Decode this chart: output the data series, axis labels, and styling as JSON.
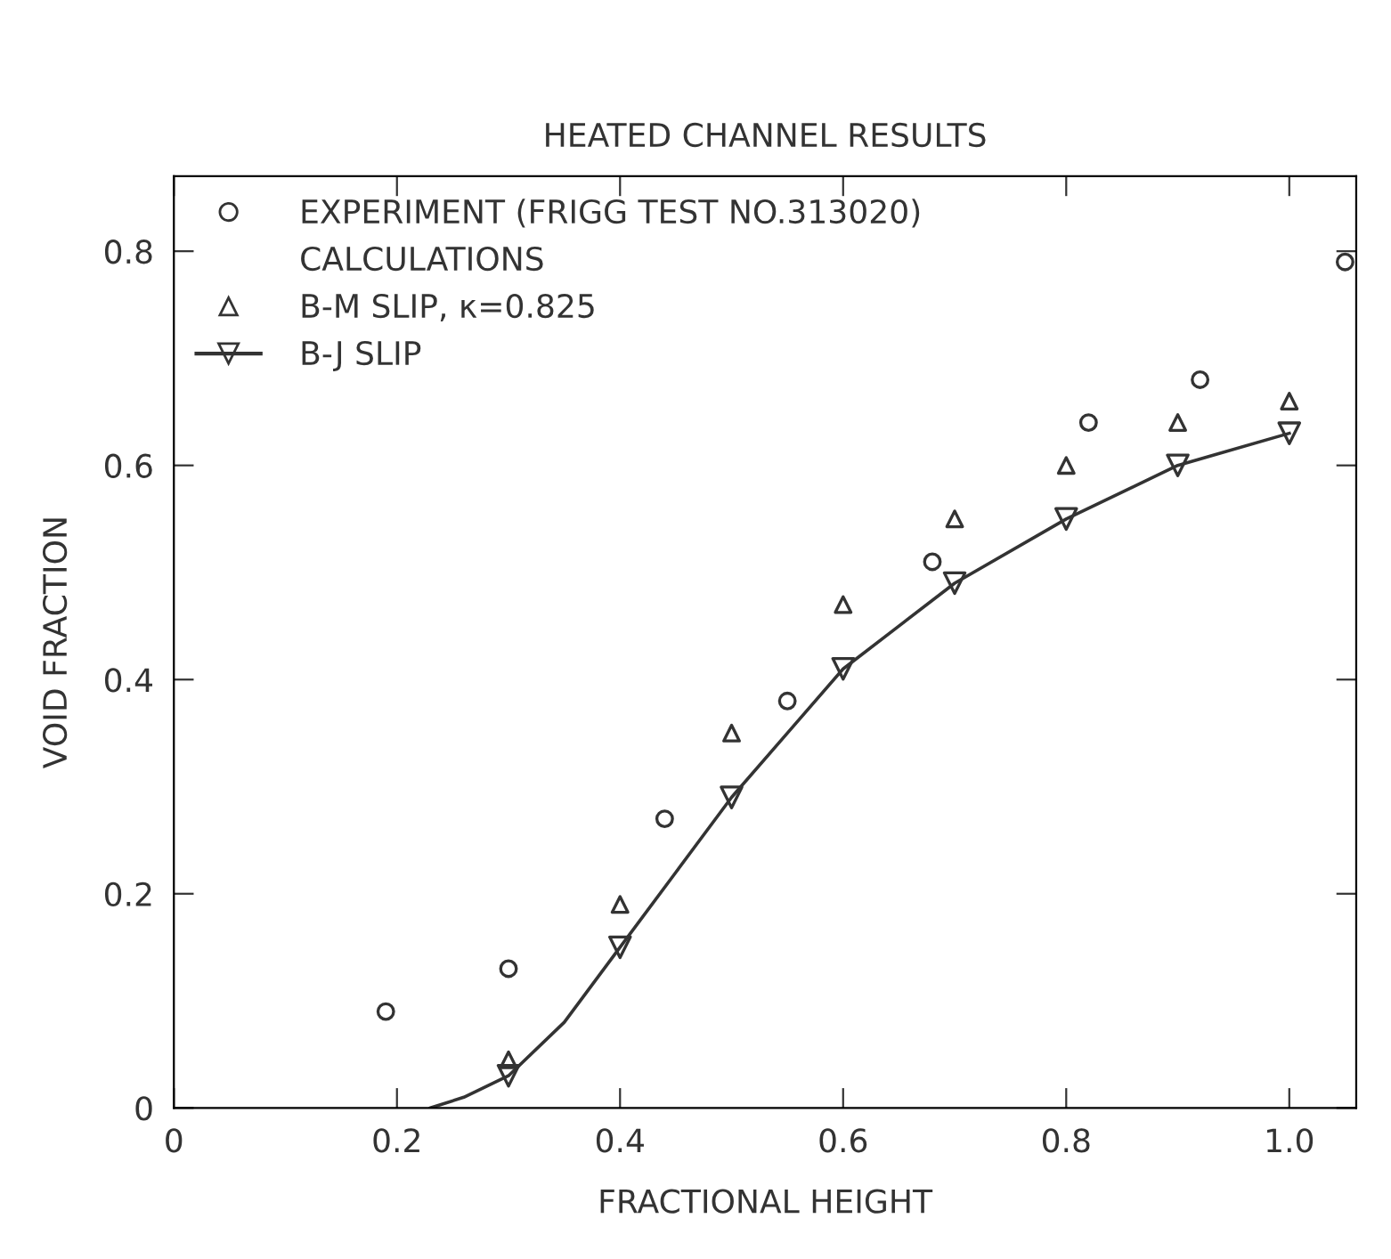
{
  "chart_data": {
    "type": "scatter",
    "title": "HEATED CHANNEL RESULTS",
    "xlabel": "FRACTIONAL HEIGHT",
    "ylabel": "VOID FRACTION",
    "xlim": [
      0,
      1.06
    ],
    "ylim": [
      0,
      0.87
    ],
    "xticks": [
      0,
      0.2,
      0.4,
      0.6,
      0.8,
      {
        "value": 1.0,
        "label": "1.0"
      }
    ],
    "yticks": [
      0,
      0.2,
      0.4,
      0.6,
      0.8
    ],
    "grid": false,
    "legend": "top left",
    "annotations": [
      "CALCULATIONS"
    ],
    "series": [
      {
        "name": "EXPERIMENT (FRIGG TEST NO.313020)",
        "marker": "circle",
        "color": "#333333",
        "x": [
          0.19,
          0.3,
          0.44,
          0.55,
          0.68,
          0.82,
          0.92,
          1.05
        ],
        "values": [
          0.09,
          0.13,
          0.27,
          0.38,
          0.51,
          0.64,
          0.68,
          0.79
        ]
      },
      {
        "name": "B-M SLIP, κ=0.825",
        "marker": "triangle",
        "color": "#333333",
        "x": [
          0.3,
          0.4,
          0.5,
          0.6,
          0.7,
          0.8,
          0.9,
          1.0
        ],
        "values": [
          0.045,
          0.19,
          0.35,
          0.47,
          0.55,
          0.6,
          0.64,
          0.66
        ]
      },
      {
        "name": "B-J SLIP",
        "marker": "triangle_down",
        "color": "#333333",
        "x": [
          0.3,
          0.4,
          0.5,
          0.6,
          0.7,
          0.8,
          0.9,
          1.0
        ],
        "values": [
          0.03,
          0.15,
          0.29,
          0.41,
          0.49,
          0.55,
          0.6,
          0.63
        ]
      },
      {
        "type": "line",
        "marker": "none",
        "line_style": "solid",
        "color": "#333333",
        "x": [
          0.23,
          0.26,
          0.3,
          0.35,
          0.4,
          0.45,
          0.5,
          0.55,
          0.6,
          0.65,
          0.7,
          0.8,
          0.9,
          1.0
        ],
        "values": [
          0,
          0.01,
          0.03,
          0.08,
          0.15,
          0.22,
          0.29,
          0.35,
          0.41,
          0.45,
          0.49,
          0.55,
          0.6,
          0.63
        ]
      }
    ]
  }
}
